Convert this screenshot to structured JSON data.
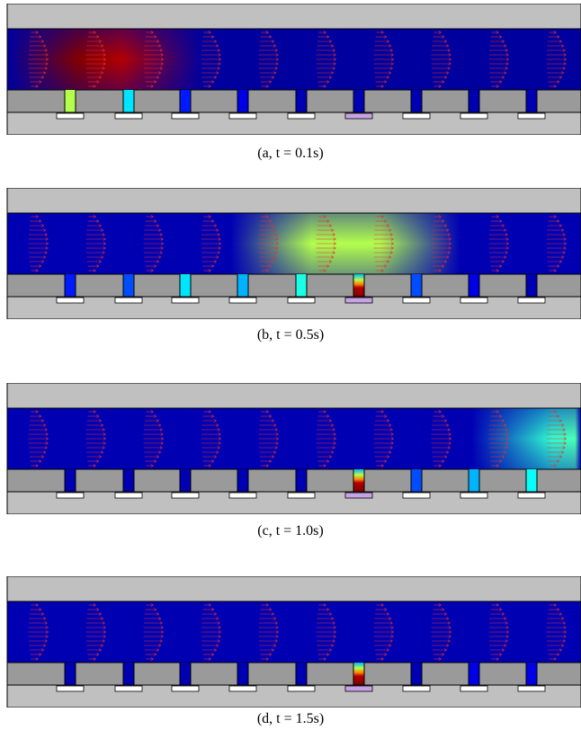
{
  "figure": {
    "panels": [
      {
        "caption": "(a, t = 0.1s)",
        "channel_heat": [
          {
            "pos": 0.12,
            "level": 1.0
          },
          {
            "pos": 0.2,
            "level": 0.95
          }
        ],
        "channel_base": 0.03,
        "slot_levels": [
          0.55,
          0.35,
          0.15,
          0.1,
          0.05,
          0.05,
          0.05,
          0.05,
          0.05,
          0.05
        ],
        "highlight_slot": 5,
        "slot_vertical_gradient": false
      },
      {
        "caption": "(b, t = 0.5s)",
        "channel_heat": [
          {
            "pos": 0.53,
            "level": 0.55
          },
          {
            "pos": 0.65,
            "level": 0.55
          }
        ],
        "channel_base": 0.05,
        "slot_levels": [
          0.15,
          0.2,
          0.35,
          0.3,
          0.4,
          1.0,
          0.2,
          0.1,
          0.05,
          0.05
        ],
        "highlight_slot": 5,
        "slot_vertical_gradient": true
      },
      {
        "caption": "(c, t = 1.0s)",
        "channel_heat": [
          {
            "pos": 0.95,
            "level": 0.42
          },
          {
            "pos": 0.99,
            "level": 0.45
          }
        ],
        "channel_base": 0.05,
        "slot_levels": [
          0.05,
          0.05,
          0.05,
          0.05,
          0.05,
          1.0,
          0.2,
          0.3,
          0.38,
          0.35
        ],
        "highlight_slot": 5,
        "slot_vertical_gradient": true
      },
      {
        "caption": "(d, t = 1.5s)",
        "channel_heat": [],
        "channel_base": 0.05,
        "slot_levels": [
          0.05,
          0.05,
          0.05,
          0.05,
          0.05,
          1.0,
          0.05,
          0.1,
          0.1,
          0.15
        ],
        "highlight_slot": 5,
        "slot_vertical_gradient": true
      }
    ],
    "colors": {
      "wall": "#c0c0c0",
      "block": "#9a9a9a",
      "pad": "#ffffff",
      "highlight_pad": "#c8a2e6",
      "arrow": "#e83030"
    },
    "colormap": "jet"
  }
}
